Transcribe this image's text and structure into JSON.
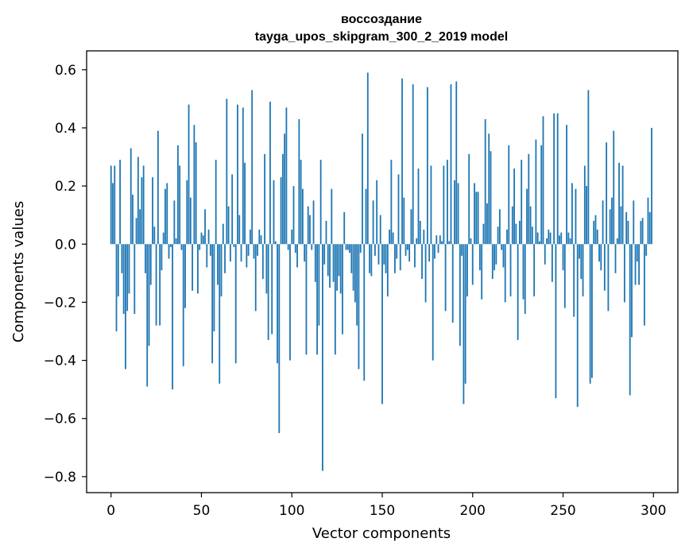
{
  "chart_data": {
    "type": "bar",
    "title": "воссоздание",
    "subtitle": "tayga_upos_skipgram_300_2_2019 model",
    "xlabel": "Vector components",
    "ylabel": "Components values",
    "xlim": [
      -13.5,
      313.5
    ],
    "ylim": [
      -0.855,
      0.665
    ],
    "xticks": [
      0,
      50,
      100,
      150,
      200,
      250,
      300
    ],
    "xtick_labels": [
      "0",
      "50",
      "100",
      "150",
      "200",
      "250",
      "300"
    ],
    "yticks": [
      -0.8,
      -0.6,
      -0.4,
      -0.2,
      0.0,
      0.2,
      0.4,
      0.6
    ],
    "ytick_labels": [
      "−0.8",
      "−0.6",
      "−0.4",
      "−0.2",
      "0.0",
      "0.2",
      "0.4",
      "0.6"
    ],
    "grid": false,
    "bar_color": "#1f77b4",
    "x": [
      0,
      1,
      2,
      3,
      4,
      5,
      6,
      7,
      8,
      9,
      10,
      11,
      12,
      13,
      14,
      15,
      16,
      17,
      18,
      19,
      20,
      21,
      22,
      23,
      24,
      25,
      26,
      27,
      28,
      29,
      30,
      31,
      32,
      33,
      34,
      35,
      36,
      37,
      38,
      39,
      40,
      41,
      42,
      43,
      44,
      45,
      46,
      47,
      48,
      49,
      50,
      51,
      52,
      53,
      54,
      55,
      56,
      57,
      58,
      59,
      60,
      61,
      62,
      63,
      64,
      65,
      66,
      67,
      68,
      69,
      70,
      71,
      72,
      73,
      74,
      75,
      76,
      77,
      78,
      79,
      80,
      81,
      82,
      83,
      84,
      85,
      86,
      87,
      88,
      89,
      90,
      91,
      92,
      93,
      94,
      95,
      96,
      97,
      98,
      99,
      100,
      101,
      102,
      103,
      104,
      105,
      106,
      107,
      108,
      109,
      110,
      111,
      112,
      113,
      114,
      115,
      116,
      117,
      118,
      119,
      120,
      121,
      122,
      123,
      124,
      125,
      126,
      127,
      128,
      129,
      130,
      131,
      132,
      133,
      134,
      135,
      136,
      137,
      138,
      139,
      140,
      141,
      142,
      143,
      144,
      145,
      146,
      147,
      148,
      149,
      150,
      151,
      152,
      153,
      154,
      155,
      156,
      157,
      158,
      159,
      160,
      161,
      162,
      163,
      164,
      165,
      166,
      167,
      168,
      169,
      170,
      171,
      172,
      173,
      174,
      175,
      176,
      177,
      178,
      179,
      180,
      181,
      182,
      183,
      184,
      185,
      186,
      187,
      188,
      189,
      190,
      191,
      192,
      193,
      194,
      195,
      196,
      197,
      198,
      199,
      200,
      201,
      202,
      203,
      204,
      205,
      206,
      207,
      208,
      209,
      210,
      211,
      212,
      213,
      214,
      215,
      216,
      217,
      218,
      219,
      220,
      221,
      222,
      223,
      224,
      225,
      226,
      227,
      228,
      229,
      230,
      231,
      232,
      233,
      234,
      235,
      236,
      237,
      238,
      239,
      240,
      241,
      242,
      243,
      244,
      245,
      246,
      247,
      248,
      249,
      250,
      251,
      252,
      253,
      254,
      255,
      256,
      257,
      258,
      259,
      260,
      261,
      262,
      263,
      264,
      265,
      266,
      267,
      268,
      269,
      270,
      271,
      272,
      273,
      274,
      275,
      276,
      277,
      278,
      279,
      280,
      281,
      282,
      283,
      284,
      285,
      286,
      287,
      288,
      289,
      290,
      291,
      292,
      293,
      294,
      295,
      296,
      297,
      298,
      299
    ],
    "values": [
      0.27,
      0.21,
      0.27,
      -0.3,
      -0.18,
      0.29,
      -0.1,
      -0.24,
      -0.43,
      -0.23,
      -0.17,
      0.33,
      0.17,
      -0.24,
      0.09,
      0.3,
      0.12,
      0.23,
      0.27,
      -0.1,
      -0.49,
      -0.35,
      -0.14,
      0.23,
      0.06,
      -0.28,
      0.39,
      -0.28,
      -0.09,
      0.04,
      0.19,
      0.21,
      -0.05,
      -0.01,
      -0.5,
      0.15,
      0.02,
      0.34,
      0.27,
      -0.02,
      -0.42,
      -0.22,
      0.22,
      0.48,
      0.16,
      -0.16,
      0.41,
      0.35,
      -0.17,
      -0.02,
      0.04,
      0.03,
      0.12,
      -0.08,
      0.05,
      -0.04,
      -0.41,
      -0.3,
      0.29,
      -0.14,
      -0.48,
      -0.18,
      0.07,
      -0.1,
      0.5,
      0.13,
      -0.06,
      0.24,
      -0.01,
      -0.41,
      0.48,
      0.1,
      -0.06,
      0.47,
      0.28,
      -0.08,
      -0.04,
      0.05,
      0.53,
      -0.05,
      -0.23,
      -0.04,
      0.05,
      0.03,
      -0.12,
      0.31,
      -0.17,
      -0.33,
      0.49,
      -0.31,
      0.22,
      0.01,
      -0.41,
      -0.65,
      0.23,
      0.31,
      0.38,
      0.47,
      -0.02,
      -0.4,
      0.05,
      0.2,
      -0.03,
      -0.08,
      0.43,
      0.29,
      0.19,
      -0.06,
      -0.38,
      0.13,
      0.1,
      -0.02,
      0.15,
      -0.13,
      -0.38,
      -0.28,
      0.29,
      -0.78,
      -0.07,
      0.08,
      -0.11,
      -0.15,
      0.19,
      -0.13,
      -0.38,
      -0.16,
      -0.11,
      -0.17,
      -0.31,
      0.11,
      -0.02,
      -0.02,
      -0.03,
      -0.1,
      -0.16,
      -0.2,
      -0.28,
      -0.43,
      -0.03,
      0.38,
      -0.47,
      0.19,
      0.59,
      -0.1,
      -0.11,
      0.15,
      -0.04,
      0.22,
      -0.07,
      0.1,
      -0.55,
      -0.07,
      -0.1,
      -0.18,
      0.05,
      0.29,
      0.04,
      -0.1,
      -0.05,
      0.24,
      -0.09,
      0.57,
      0.16,
      -0.04,
      -0.02,
      -0.06,
      0.12,
      0.55,
      -0.08,
      0.02,
      0.26,
      0.08,
      -0.12,
      0.05,
      -0.2,
      0.54,
      -0.06,
      0.27,
      -0.4,
      -0.05,
      0.03,
      -0.03,
      0.03,
      0.01,
      0.27,
      -0.23,
      0.29,
      0.01,
      0.55,
      -0.27,
      0.22,
      0.56,
      0.21,
      -0.35,
      -0.04,
      -0.55,
      -0.48,
      -0.18,
      0.31,
      0.02,
      -0.14,
      0.21,
      0.18,
      0.18,
      -0.09,
      -0.19,
      0.07,
      0.43,
      0.14,
      0.38,
      0.32,
      -0.12,
      -0.09,
      -0.07,
      0.06,
      0.12,
      -0.02,
      -0.08,
      -0.2,
      0.05,
      0.34,
      -0.18,
      0.13,
      0.26,
      0.07,
      -0.33,
      0.08,
      0.29,
      -0.19,
      -0.24,
      0.19,
      0.31,
      0.13,
      0.06,
      -0.18,
      0.36,
      0.04,
      0.01,
      0.34,
      0.44,
      -0.07,
      0.02,
      0.05,
      0.04,
      -0.13,
      0.45,
      -0.53,
      0.45,
      0.03,
      0.04,
      -0.09,
      -0.22,
      0.41,
      0.04,
      0.02,
      0.21,
      -0.25,
      0.19,
      -0.56,
      -0.05,
      -0.12,
      -0.18,
      0.27,
      0.2,
      0.53,
      -0.48,
      -0.46,
      0.08,
      0.1,
      0.05,
      -0.06,
      -0.09,
      0.15,
      -0.16,
      0.35,
      -0.23,
      0.12,
      0.16,
      0.39,
      -0.1,
      0.02,
      0.28,
      0.13,
      0.27,
      -0.2,
      0.11,
      0.08,
      -0.52,
      -0.32,
      0.15,
      -0.14,
      -0.06,
      -0.14,
      0.08,
      0.09,
      -0.28,
      -0.04,
      0.16,
      0.11,
      0.4
    ]
  }
}
